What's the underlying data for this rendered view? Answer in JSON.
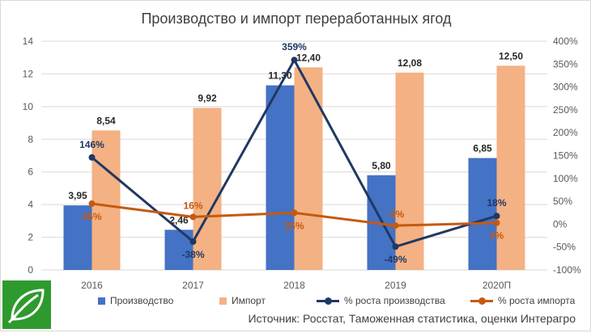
{
  "chart_data": {
    "type": "bar",
    "title": "Производство и импорт переработанных ягод",
    "categories": [
      "2016",
      "2017",
      "2018",
      "2019",
      "2020П"
    ],
    "left_axis": {
      "ylim": [
        0,
        14
      ],
      "ticks": [
        "0",
        "2",
        "4",
        "6",
        "8",
        "10",
        "12",
        "14"
      ]
    },
    "right_axis": {
      "ylim": [
        -100,
        400
      ],
      "ticks": [
        "-100%",
        "-50%",
        "0%",
        "50%",
        "100%",
        "150%",
        "200%",
        "250%",
        "300%",
        "350%",
        "400%"
      ]
    },
    "grid": true,
    "legend_position": "bottom",
    "series": [
      {
        "name": "Производство",
        "kind": "bar",
        "axis": "left",
        "color": "#4472c4",
        "values": [
          3.95,
          2.46,
          11.3,
          5.8,
          6.85
        ],
        "labels": [
          "3,95",
          "2,46",
          "11,30",
          "5,80",
          "6,85"
        ]
      },
      {
        "name": "Импорт",
        "kind": "bar",
        "axis": "left",
        "color": "#f4b183",
        "values": [
          8.54,
          9.92,
          12.4,
          12.08,
          12.5
        ],
        "labels": [
          "8,54",
          "9,92",
          "12,40",
          "12,08",
          "12,50"
        ]
      },
      {
        "name": "% роста производства",
        "kind": "line",
        "axis": "right",
        "color": "#203864",
        "values": [
          146,
          -38,
          359,
          -49,
          18
        ],
        "labels": [
          "146%",
          "-38%",
          "359%",
          "-49%",
          "18%"
        ]
      },
      {
        "name": "% роста импорта",
        "kind": "line",
        "axis": "right",
        "color": "#c55a11",
        "values": [
          45,
          16,
          25,
          -3,
          3
        ],
        "labels": [
          "45%",
          "16%",
          "25%",
          "-3%",
          "3%"
        ]
      }
    ]
  },
  "source_text": "Источник: Росстат, Таможенная статистика, оценки Интерагро",
  "logo": {
    "icon": "leaf-icon",
    "color": "#2e9a2e"
  }
}
